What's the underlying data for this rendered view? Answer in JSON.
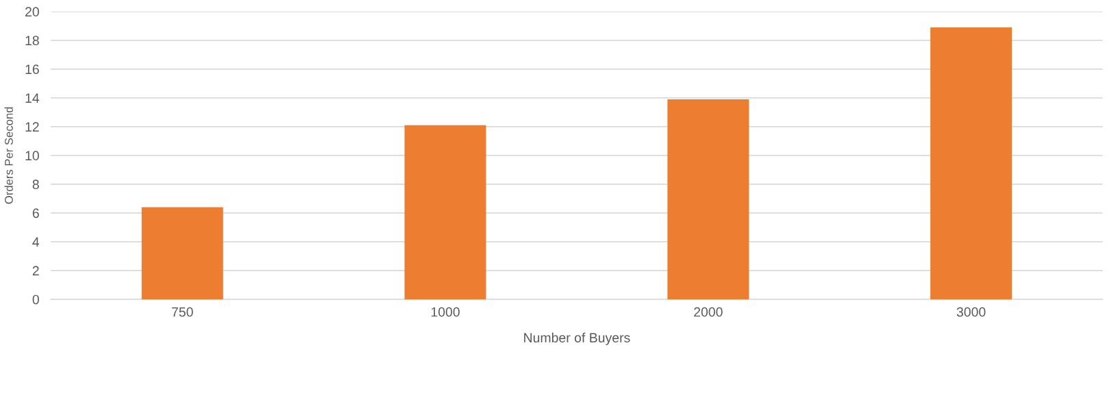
{
  "chart_data": {
    "type": "bar",
    "xlabel": "Number of Buyers",
    "ylabel": "Orders Per Second",
    "categories": [
      "750",
      "1000",
      "2000",
      "3000"
    ],
    "series": [
      {
        "color": "#ed7d31",
        "values": [
          6.4,
          12.1,
          13.9,
          18.9
        ]
      }
    ],
    "ylim": [
      0,
      20
    ],
    "yticks": [
      0,
      2,
      4,
      6,
      8,
      10,
      12,
      14,
      16,
      18,
      20
    ],
    "grid": "y"
  }
}
